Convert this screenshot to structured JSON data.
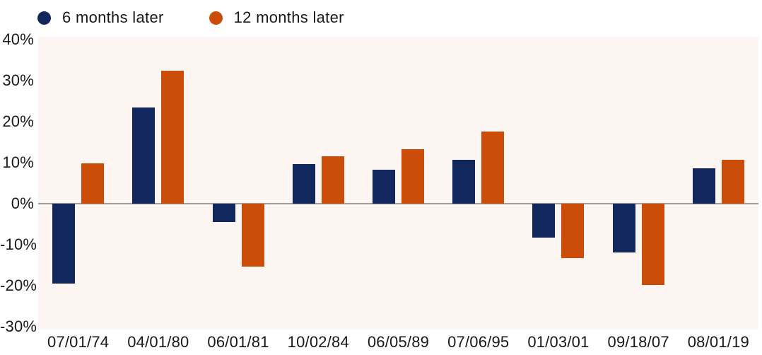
{
  "legend": {
    "items": [
      {
        "label": "6 months later",
        "color": "#12275d",
        "icon": "circle"
      },
      {
        "label": "12 months later",
        "color": "#cb4d07",
        "icon": "circle"
      }
    ]
  },
  "chart_data": {
    "type": "bar",
    "title": "",
    "xlabel": "",
    "ylabel": "",
    "categories": [
      "07/01/74",
      "04/01/80",
      "06/01/81",
      "10/02/84",
      "06/05/89",
      "07/06/95",
      "01/03/01",
      "09/18/07",
      "08/01/19"
    ],
    "series": [
      {
        "name": "6 months later",
        "color": "#12275d",
        "values": [
          -19.5,
          23.5,
          -4.5,
          9.7,
          8.2,
          10.7,
          -8.3,
          -11.9,
          8.7
        ]
      },
      {
        "name": "12 months later",
        "color": "#cb4d07",
        "values": [
          9.8,
          32.4,
          -15.3,
          11.6,
          13.2,
          17.6,
          -13.2,
          -19.9,
          10.7
        ]
      }
    ],
    "ylim": [
      -30,
      40
    ],
    "y_tick_values": [
      40,
      30,
      20,
      10,
      0,
      -10,
      -20,
      -30
    ],
    "y_tick_labels": [
      "40%",
      "30%",
      "20%",
      "10%",
      "0%",
      "-10%",
      "-20%",
      "-30%"
    ],
    "grid": "zero-line-only",
    "legend_position": "top-left",
    "colors": {
      "plot_background": "#fcf5f1",
      "zero_line": "#9e9e9e",
      "text": "#191919"
    }
  }
}
